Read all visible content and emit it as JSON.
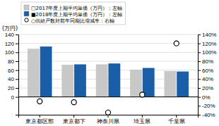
{
  "chart_data": {
    "type": "bar",
    "categories": [
      "東京都区部",
      "東京都下",
      "神奈川県",
      "埼玉県",
      "千葉県"
    ],
    "series": [
      {
        "name": "□2017年度上期平均単価（万円）：左軸",
        "color": "#c8c8c8",
        "values": [
          108,
          72,
          73,
          61,
          58
        ]
      },
      {
        "name": "■2018年度上期平均単価（万円）：左軸",
        "color": "#1a5ea8",
        "values": [
          113,
          73,
          75,
          65,
          57
        ]
      },
      {
        "name": "○供給戸数対前年同期比増減率：右軸",
        "type": "scatter",
        "marker": "circle",
        "color": "#000000",
        "axis": "y2",
        "values": [
          -10,
          -12,
          -35,
          5,
          120
        ]
      }
    ],
    "ylabel": "(万円)",
    "ylim": [
      -40,
      140
    ],
    "yticks": [
      0,
      20,
      40,
      60,
      80,
      100,
      120,
      140
    ],
    "y2lim": [
      -40,
      140
    ],
    "y2ticks": [
      {
        "value": -40,
        "label": "-40%"
      },
      {
        "value": -20,
        "label": "-20%"
      },
      {
        "value": 0,
        "label": "0%"
      },
      {
        "value": 20,
        "label": "20%"
      },
      {
        "value": 40,
        "label": "40%"
      },
      {
        "value": 60,
        "label": "60%"
      },
      {
        "value": 80,
        "label": "80%"
      },
      {
        "value": 100,
        "label": "100%"
      },
      {
        "value": 120,
        "label": "120%"
      },
      {
        "value": 140,
        "label": "140%"
      }
    ],
    "grid": true,
    "legend": "top"
  }
}
